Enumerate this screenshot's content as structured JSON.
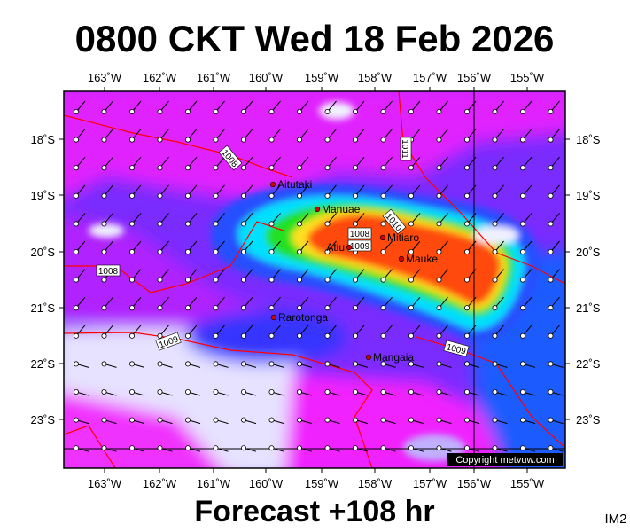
{
  "title": "0800 CKT Wed 18 Feb 2026",
  "footer": "Forecast +108 hr",
  "corner": "IM2",
  "copyright": "Copyright metvuw.com",
  "lon_labels": [
    "163˚W",
    "162˚W",
    "161˚W",
    "160˚W",
    "159˚W",
    "158˚W",
    "157˚W",
    "156˚W",
    "155˚W"
  ],
  "lat_labels": [
    "18˚S",
    "19˚S",
    "20˚S",
    "21˚S",
    "22˚S",
    "23˚S"
  ],
  "places": [
    "Aitutaki",
    "Manuae",
    "Mitiaro",
    "Atiu",
    "Mauke",
    "Rarotonga",
    "Mangaia"
  ],
  "isobars": [
    "1008",
    "1011",
    "1010",
    "1008",
    "1009",
    "1008",
    "1009",
    "1009"
  ]
}
